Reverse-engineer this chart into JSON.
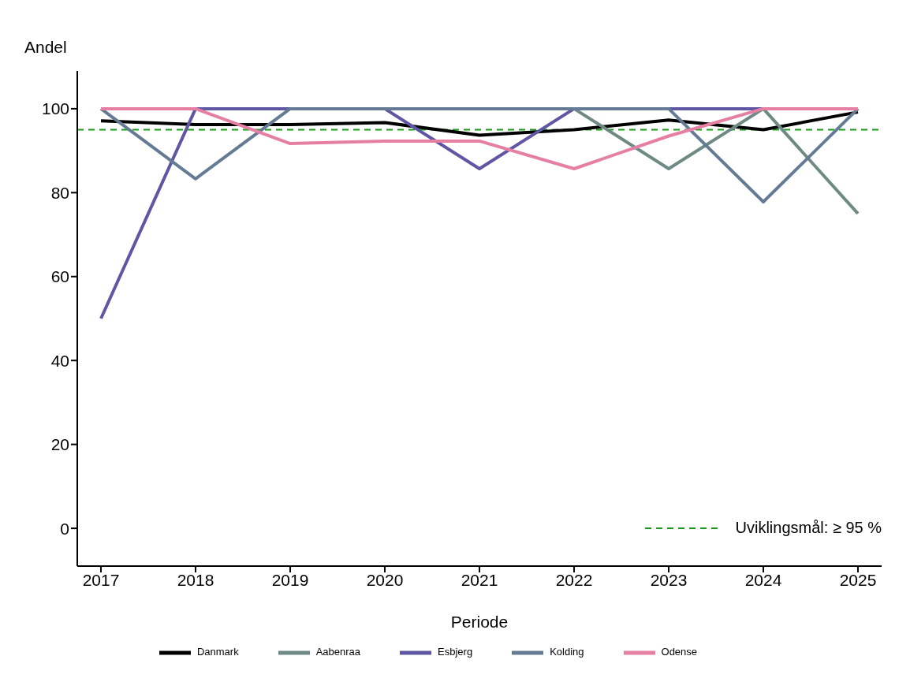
{
  "chart_data": {
    "type": "line",
    "ylabel": "Andel",
    "xlabel": "Periode",
    "categories": [
      "2017",
      "2018",
      "2019",
      "2020",
      "2021",
      "2022",
      "2023",
      "2024",
      "2025"
    ],
    "series": [
      {
        "name": "Danmark",
        "color": "#000000",
        "values": [
          97.1,
          96.2,
          96.2,
          96.7,
          93.7,
          95.0,
          97.3,
          95.0,
          99.2
        ]
      },
      {
        "name": "Aabenraa",
        "color": "#6f8a84",
        "values": [
          null,
          null,
          null,
          null,
          null,
          100,
          85.7,
          100,
          75
        ]
      },
      {
        "name": "Esbjerg",
        "color": "#5f57a3",
        "values": [
          50,
          100,
          100,
          100,
          85.7,
          100,
          100,
          100,
          100
        ]
      },
      {
        "name": "Kolding",
        "color": "#657b95",
        "values": [
          100,
          83.3,
          100,
          100,
          100,
          100,
          100,
          77.8,
          100
        ]
      },
      {
        "name": "Odense",
        "color": "#e57fa4",
        "values": [
          100,
          100,
          91.7,
          92.3,
          92.3,
          85.7,
          93.5,
          100,
          100
        ]
      }
    ],
    "ylim": [
      -9,
      109
    ],
    "yticks": [
      0,
      20,
      40,
      60,
      80,
      100
    ],
    "ref_lines": [
      {
        "axis": "y",
        "value": 95,
        "label": "Uviklingsmål: ≥ 95 %",
        "color": "#1a9a1a",
        "line_style": "dashed"
      }
    ],
    "grid": false,
    "legend": "bottom",
    "line_style": "solid",
    "marker": "none"
  }
}
